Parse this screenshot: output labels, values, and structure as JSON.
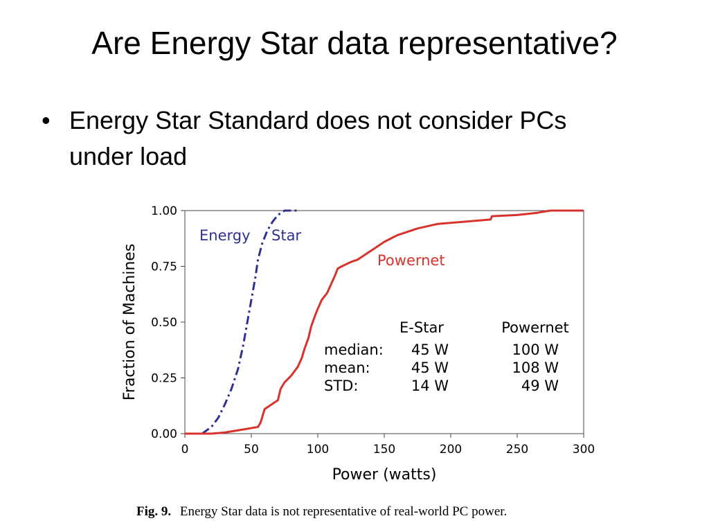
{
  "slide": {
    "title": "Are Energy Star data representative?",
    "bullet": "Energy Star Standard does not consider PCs under load",
    "bullet_marker": "•"
  },
  "chart_data": {
    "type": "line",
    "xlabel": "Power (watts)",
    "ylabel": "Fraction of Machines",
    "xlim": [
      0,
      300
    ],
    "ylim": [
      0,
      1
    ],
    "xticks": [
      "0",
      "50",
      "100",
      "150",
      "200",
      "250",
      "300"
    ],
    "yticks": [
      "0.00",
      "0.25",
      "0.50",
      "0.75",
      "1.00"
    ],
    "grid": false,
    "series": [
      {
        "name": "Energy Star",
        "color": "#2e3192",
        "style": "dash-dot",
        "x": [
          0,
          13,
          20,
          25,
          30,
          35,
          40,
          44,
          47,
          50,
          53,
          55,
          58,
          62,
          66,
          70,
          75,
          85
        ],
        "y": [
          0,
          0,
          0.03,
          0.07,
          0.13,
          0.2,
          0.29,
          0.4,
          0.5,
          0.6,
          0.7,
          0.78,
          0.85,
          0.91,
          0.95,
          0.98,
          1.0,
          1.0
        ]
      },
      {
        "name": "Powernet",
        "color": "#d7332c",
        "style": "solid",
        "x": [
          0,
          20,
          30,
          45,
          55,
          57,
          60,
          65,
          70,
          72,
          75,
          80,
          85,
          88,
          90,
          93,
          95,
          98,
          100,
          103,
          107,
          110,
          113,
          115,
          118,
          125,
          130,
          140,
          150,
          160,
          175,
          190,
          210,
          230,
          231,
          250,
          265,
          275,
          300
        ],
        "y": [
          0,
          0,
          0.005,
          0.02,
          0.03,
          0.05,
          0.11,
          0.13,
          0.15,
          0.2,
          0.23,
          0.26,
          0.3,
          0.34,
          0.38,
          0.43,
          0.48,
          0.53,
          0.56,
          0.6,
          0.63,
          0.67,
          0.71,
          0.74,
          0.75,
          0.77,
          0.78,
          0.82,
          0.86,
          0.89,
          0.92,
          0.94,
          0.95,
          0.96,
          0.975,
          0.98,
          0.99,
          1.0,
          1.0
        ]
      }
    ],
    "annotations": {
      "energy_star_word1": "Energy",
      "energy_star_word2": "Star",
      "powernet": "Powernet"
    },
    "stats_table": {
      "headers": [
        "",
        "E-Star",
        "Powernet"
      ],
      "rows": [
        [
          "median:",
          "45 W",
          "100 W"
        ],
        [
          "mean:",
          "45 W",
          "108 W"
        ],
        [
          "STD:",
          "14 W",
          "49 W"
        ]
      ]
    },
    "caption": {
      "label": "Fig. 9.",
      "text": "Energy Star data is not representative of real-world PC power."
    }
  }
}
